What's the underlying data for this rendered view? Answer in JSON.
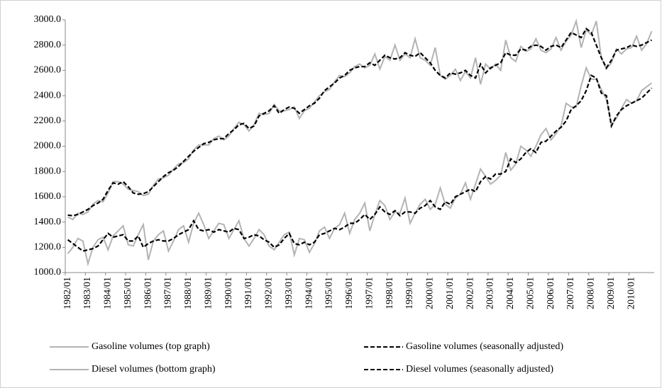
{
  "chart_data": {
    "type": "line",
    "categories": [
      "1982/01",
      null,
      null,
      null,
      "1983/01",
      null,
      null,
      null,
      "1984/01",
      null,
      null,
      null,
      "1985/01",
      null,
      null,
      null,
      "1986/01",
      null,
      null,
      null,
      "1987/01",
      null,
      null,
      null,
      "1988/01",
      null,
      null,
      null,
      "1989/01",
      null,
      null,
      null,
      "1990/01",
      null,
      null,
      null,
      "1991/01",
      null,
      null,
      null,
      "1992/01",
      null,
      null,
      null,
      "1993/01",
      null,
      null,
      null,
      "1994/01",
      null,
      null,
      null,
      "1995/01",
      null,
      null,
      null,
      "1996/01",
      null,
      null,
      null,
      "1997/01",
      null,
      null,
      null,
      "1998/01",
      null,
      null,
      null,
      "1999/01",
      null,
      null,
      null,
      "2000/01",
      null,
      null,
      null,
      "2001/01",
      null,
      null,
      null,
      "2002/01",
      null,
      null,
      null,
      "2003/01",
      null,
      null,
      null,
      "2004/01",
      null,
      null,
      null,
      "2005/01",
      null,
      null,
      null,
      "2006/01",
      null,
      null,
      null,
      "2007/01",
      null,
      null,
      null,
      "2008/01",
      null,
      null,
      null,
      "2009/01",
      null,
      null,
      null,
      "2010/01",
      null,
      null,
      null,
      null
    ],
    "series": [
      {
        "name": "Gasoline volumes (top graph)",
        "color": "#b3b3b3",
        "line_style": "solid",
        "values": [
          1440,
          1420,
          1470,
          1460,
          1480,
          1540,
          1570,
          1560,
          1630,
          1720,
          1720,
          1700,
          1660,
          1650,
          1640,
          1610,
          1620,
          1690,
          1740,
          1750,
          1770,
          1820,
          1860,
          1870,
          1900,
          1970,
          2010,
          2010,
          2010,
          2060,
          2080,
          2050,
          2080,
          2140,
          2190,
          2170,
          2120,
          2170,
          2260,
          2250,
          2260,
          2330,
          2280,
          2280,
          2290,
          2310,
          2220,
          2280,
          2300,
          2350,
          2400,
          2430,
          2450,
          2510,
          2560,
          2550,
          2580,
          2630,
          2650,
          2620,
          2640,
          2730,
          2610,
          2710,
          2680,
          2800,
          2680,
          2730,
          2700,
          2850,
          2700,
          2680,
          2640,
          2780,
          2560,
          2530,
          2560,
          2610,
          2520,
          2590,
          2540,
          2700,
          2490,
          2650,
          2610,
          2650,
          2600,
          2840,
          2700,
          2670,
          2790,
          2750,
          2770,
          2850,
          2760,
          2740,
          2770,
          2860,
          2760,
          2830,
          2880,
          2990,
          2780,
          2920,
          2880,
          2990,
          2700,
          2610,
          2660,
          2770,
          2730,
          2770,
          2780,
          2870,
          2760,
          2810,
          2910
        ]
      },
      {
        "name": "Gasoline volumes (seasonally adjusted)",
        "color": "#000000",
        "line_style": "dashed",
        "values": [
          1455,
          1450,
          1460,
          1480,
          1500,
          1530,
          1550,
          1580,
          1650,
          1710,
          1700,
          1720,
          1680,
          1630,
          1620,
          1625,
          1640,
          1680,
          1720,
          1760,
          1790,
          1810,
          1840,
          1880,
          1920,
          1960,
          1990,
          2020,
          2030,
          2050,
          2060,
          2060,
          2100,
          2130,
          2170,
          2180,
          2140,
          2160,
          2240,
          2260,
          2280,
          2320,
          2260,
          2290,
          2310,
          2300,
          2260,
          2290,
          2320,
          2340,
          2380,
          2440,
          2470,
          2500,
          2540,
          2560,
          2600,
          2620,
          2630,
          2630,
          2660,
          2640,
          2680,
          2720,
          2700,
          2690,
          2700,
          2740,
          2720,
          2710,
          2740,
          2700,
          2660,
          2600,
          2560,
          2540,
          2580,
          2570,
          2580,
          2600,
          2560,
          2540,
          2650,
          2580,
          2620,
          2640,
          2660,
          2740,
          2720,
          2720,
          2770,
          2760,
          2790,
          2800,
          2790,
          2760,
          2790,
          2800,
          2780,
          2840,
          2900,
          2880,
          2860,
          2930,
          2900,
          2800,
          2700,
          2620,
          2680,
          2760,
          2770,
          2780,
          2800,
          2790,
          2800,
          2820,
          2840
        ]
      },
      {
        "name": "Diesel volumes (bottom graph)",
        "color": "#b3b3b3",
        "line_style": "solid",
        "values": [
          1150,
          1200,
          1270,
          1250,
          1070,
          1200,
          1260,
          1280,
          1180,
          1290,
          1330,
          1370,
          1220,
          1210,
          1300,
          1380,
          1100,
          1250,
          1300,
          1330,
          1170,
          1250,
          1340,
          1370,
          1240,
          1390,
          1470,
          1380,
          1270,
          1330,
          1390,
          1380,
          1270,
          1340,
          1410,
          1270,
          1210,
          1270,
          1340,
          1300,
          1210,
          1180,
          1240,
          1300,
          1320,
          1140,
          1270,
          1260,
          1160,
          1230,
          1330,
          1360,
          1270,
          1350,
          1380,
          1470,
          1310,
          1420,
          1470,
          1550,
          1330,
          1460,
          1570,
          1530,
          1420,
          1480,
          1470,
          1590,
          1390,
          1470,
          1540,
          1580,
          1500,
          1540,
          1670,
          1540,
          1510,
          1590,
          1620,
          1710,
          1580,
          1700,
          1820,
          1760,
          1700,
          1730,
          1770,
          1950,
          1810,
          1860,
          2000,
          1970,
          1920,
          2000,
          2090,
          2140,
          2050,
          2100,
          2160,
          2340,
          2310,
          2310,
          2480,
          2620,
          2530,
          2530,
          2450,
          2370,
          2170,
          2220,
          2300,
          2370,
          2340,
          2360,
          2440,
          2470,
          2500
        ]
      },
      {
        "name": "Diesel volumes (seasonally adjusted)",
        "color": "#000000",
        "line_style": "dashed",
        "values": [
          1260,
          1230,
          1200,
          1170,
          1180,
          1190,
          1210,
          1260,
          1310,
          1280,
          1290,
          1300,
          1250,
          1250,
          1290,
          1200,
          1230,
          1250,
          1260,
          1250,
          1250,
          1270,
          1300,
          1320,
          1340,
          1410,
          1340,
          1330,
          1340,
          1320,
          1340,
          1330,
          1320,
          1350,
          1340,
          1270,
          1280,
          1300,
          1290,
          1260,
          1240,
          1200,
          1220,
          1270,
          1310,
          1230,
          1220,
          1240,
          1220,
          1240,
          1300,
          1310,
          1330,
          1350,
          1340,
          1360,
          1390,
          1390,
          1420,
          1460,
          1420,
          1460,
          1520,
          1480,
          1460,
          1490,
          1450,
          1480,
          1480,
          1470,
          1510,
          1530,
          1570,
          1520,
          1500,
          1560,
          1540,
          1600,
          1620,
          1640,
          1660,
          1640,
          1720,
          1760,
          1740,
          1780,
          1780,
          1800,
          1900,
          1870,
          1900,
          1950,
          1980,
          1950,
          2030,
          2040,
          2080,
          2120,
          2150,
          2200,
          2290,
          2320,
          2360,
          2440,
          2560,
          2540,
          2420,
          2400,
          2160,
          2240,
          2290,
          2320,
          2340,
          2360,
          2380,
          2420,
          2460
        ]
      }
    ],
    "ylim": [
      1000,
      3000
    ],
    "yticks": [
      {
        "value": 1000,
        "label": "1000.0"
      },
      {
        "value": 1200,
        "label": "1200.0"
      },
      {
        "value": 1400,
        "label": "1400.0"
      },
      {
        "value": 1600,
        "label": "1600.0"
      },
      {
        "value": 1800,
        "label": "1800.0"
      },
      {
        "value": 2000,
        "label": "2000.0"
      },
      {
        "value": 2200,
        "label": "2200.0"
      },
      {
        "value": 2400,
        "label": "2400.0"
      },
      {
        "value": 2600,
        "label": "2600.0"
      },
      {
        "value": 2800,
        "label": "2800.0"
      },
      {
        "value": 3000,
        "label": "3000.0"
      }
    ],
    "grid": false,
    "legend": "bottom"
  }
}
